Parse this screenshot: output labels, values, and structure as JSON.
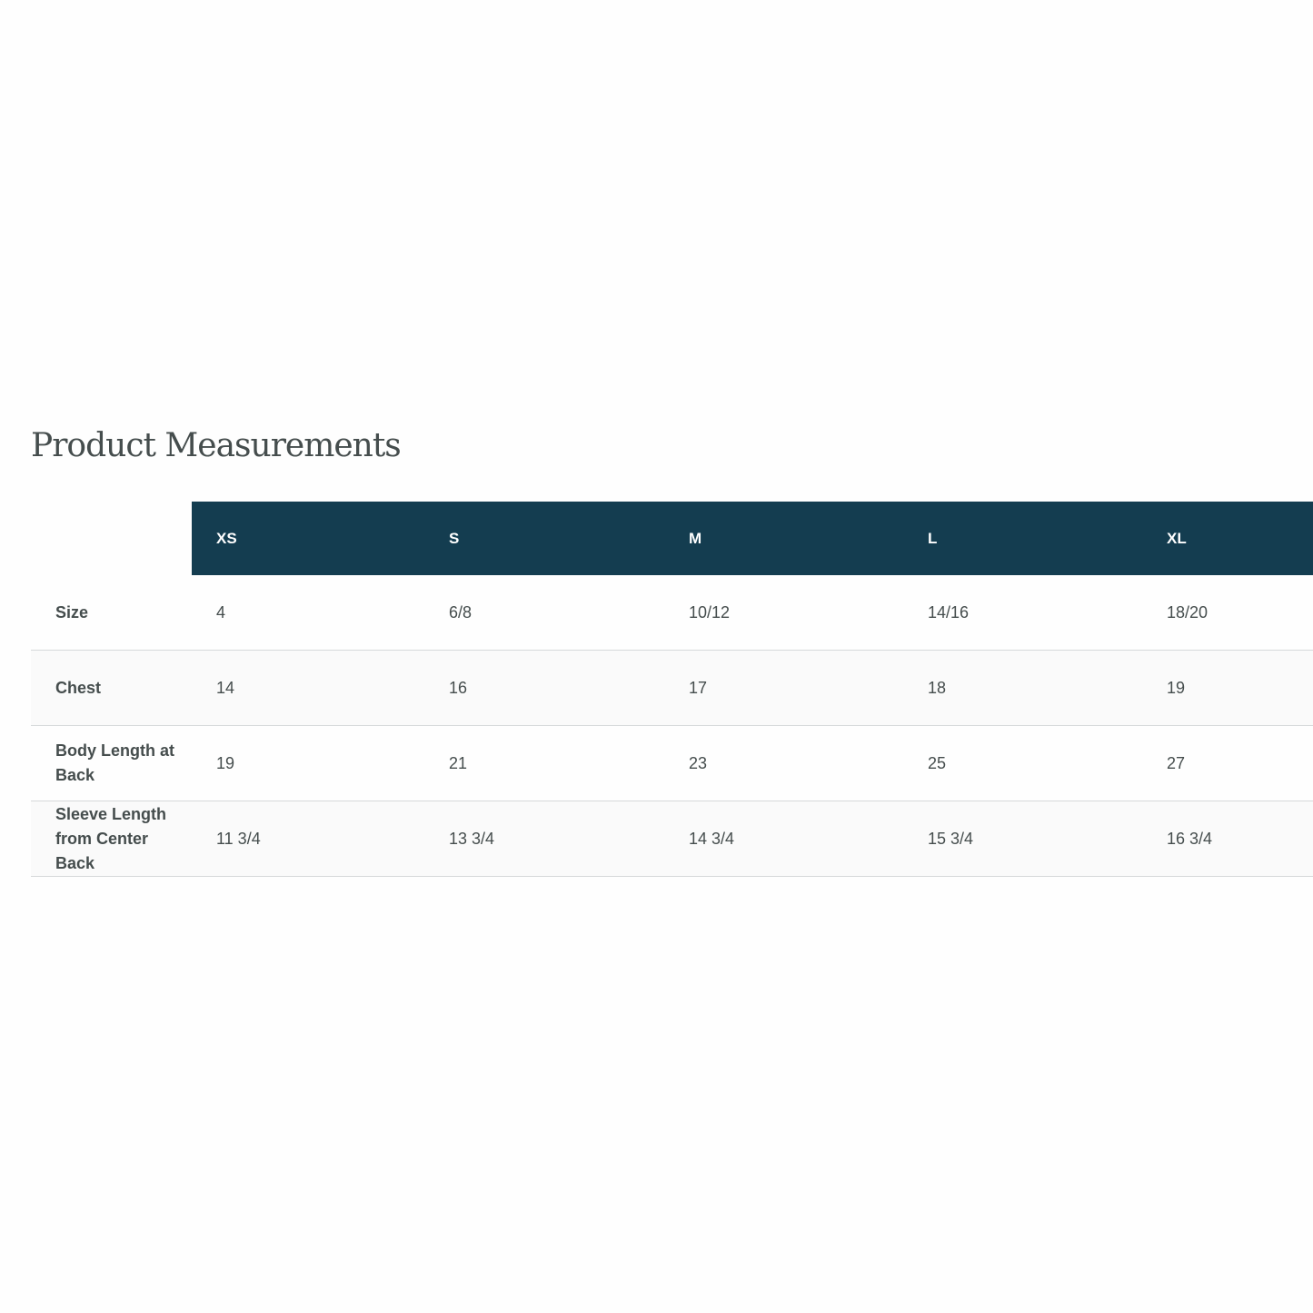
{
  "title": "Product Measurements",
  "table": {
    "headers": [
      "",
      "XS",
      "S",
      "M",
      "L",
      "XL"
    ],
    "rows": [
      {
        "label": "Size",
        "values": [
          "4",
          "6/8",
          "10/12",
          "14/16",
          "18/20"
        ]
      },
      {
        "label": "Chest",
        "values": [
          "14",
          "16",
          "17",
          "18",
          "19"
        ]
      },
      {
        "label": "Body Length at Back",
        "values": [
          "19",
          "21",
          "23",
          "25",
          "27"
        ]
      },
      {
        "label": "Sleeve Length from Center Back",
        "values": [
          "11 3/4",
          "13 3/4",
          "14 3/4",
          "15 3/4",
          "16 3/4"
        ]
      }
    ]
  },
  "colors": {
    "header_bg": "#143d50",
    "text": "#454d4d",
    "alt_row": "#fafafa"
  }
}
